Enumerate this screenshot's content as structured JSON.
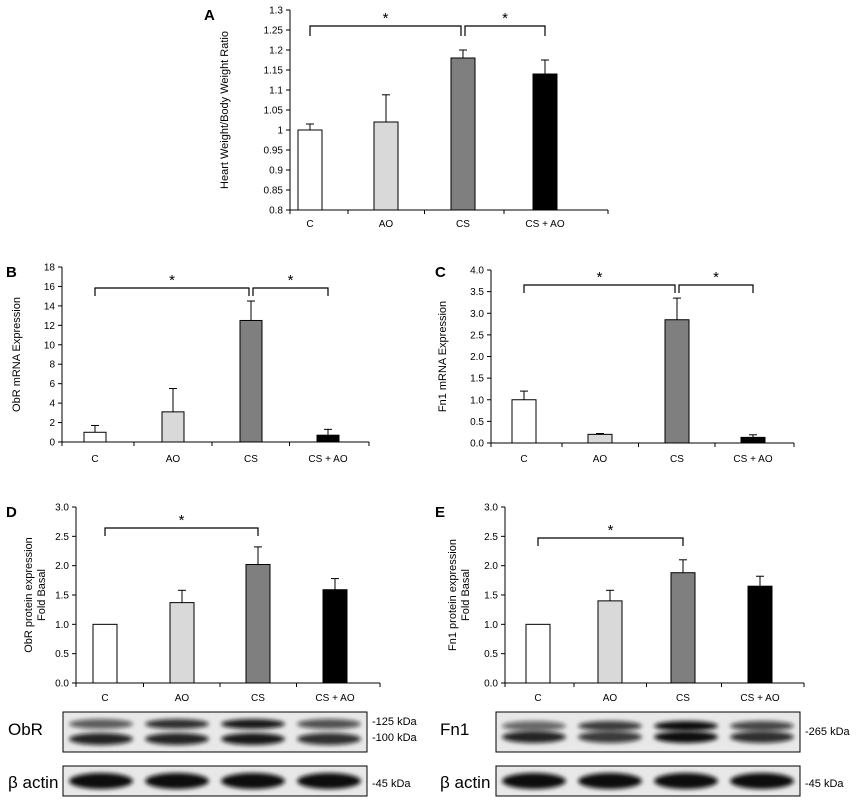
{
  "chart_data": [
    {
      "panel": "A",
      "type": "bar",
      "categories": [
        "C",
        "AO",
        "CS",
        "CS + AO"
      ],
      "values": [
        1.0,
        1.02,
        1.18,
        1.14
      ],
      "errors": [
        0.015,
        0.068,
        0.02,
        0.035
      ],
      "ylabel": "Heart Weight/Body Weight  Ratio",
      "ylim": [
        0.8,
        1.3
      ],
      "yticks": [
        "0.8",
        "0.85",
        "0.9",
        "0.95",
        "1",
        "1.05",
        "1.1",
        "1.15",
        "1.2",
        "1.25",
        "1.3"
      ],
      "significance": [
        {
          "from": 0,
          "to": 2,
          "label": "*"
        },
        {
          "from": 2,
          "to": 3,
          "label": "*"
        }
      ]
    },
    {
      "panel": "B",
      "type": "bar",
      "categories": [
        "C",
        "AO",
        "CS",
        "CS + AO"
      ],
      "values": [
        1.0,
        3.1,
        12.5,
        0.7
      ],
      "errors": [
        0.7,
        2.4,
        2.0,
        0.6
      ],
      "ylabel": "ObR mRNA Expression",
      "ylim": [
        0,
        18
      ],
      "yticks": [
        "0",
        "2",
        "4",
        "6",
        "8",
        "10",
        "12",
        "14",
        "16",
        "18"
      ],
      "significance": [
        {
          "from": 0,
          "to": 2,
          "label": "*"
        },
        {
          "from": 2,
          "to": 3,
          "label": "*"
        }
      ]
    },
    {
      "panel": "C",
      "type": "bar",
      "categories": [
        "C",
        "AO",
        "CS",
        "CS + AO"
      ],
      "values": [
        1.0,
        0.2,
        2.85,
        0.13
      ],
      "errors": [
        0.2,
        0.02,
        0.5,
        0.06
      ],
      "ylabel": "Fn1 mRNA Expression",
      "ylim": [
        0,
        4
      ],
      "yticks": [
        "0.0",
        "0.5",
        "1.0",
        "1.5",
        "2.0",
        "2.5",
        "3.0",
        "3.5",
        "4.0"
      ],
      "significance": [
        {
          "from": 0,
          "to": 2,
          "label": "*"
        },
        {
          "from": 2,
          "to": 3,
          "label": "*"
        }
      ]
    },
    {
      "panel": "D",
      "type": "bar",
      "categories": [
        "C",
        "AO",
        "CS",
        "CS + AO"
      ],
      "values": [
        1.0,
        1.37,
        2.02,
        1.59
      ],
      "errors": [
        0.0,
        0.21,
        0.3,
        0.19
      ],
      "ylabel": "ObR protein expression Fold Basal",
      "ylabel_lines": [
        "ObR protein expression",
        "Fold Basal"
      ],
      "ylim": [
        0,
        3
      ],
      "yticks": [
        "0.0",
        "0.5",
        "1.0",
        "1.5",
        "2.0",
        "2.5",
        "3.0"
      ],
      "significance": [
        {
          "from": 0,
          "to": 2,
          "label": "*"
        }
      ]
    },
    {
      "panel": "E",
      "type": "bar",
      "categories": [
        "C",
        "AO",
        "CS",
        "CS + AO"
      ],
      "values": [
        1.0,
        1.4,
        1.88,
        1.65
      ],
      "errors": [
        0.0,
        0.18,
        0.22,
        0.17
      ],
      "ylabel": "Fn1 protein expression Fold Basal",
      "ylabel_lines": [
        "Fn1 protein expression",
        "Fold Basal"
      ],
      "ylim": [
        0,
        3
      ],
      "yticks": [
        "0.0",
        "0.5",
        "1.0",
        "1.5",
        "2.0",
        "2.5",
        "3.0"
      ],
      "significance": [
        {
          "from": 0,
          "to": 2,
          "label": "*"
        }
      ]
    }
  ],
  "bar_colors": [
    "#ffffff",
    "#d9d9d9",
    "#7f7f7f",
    "#000000"
  ],
  "blots": [
    {
      "panel": "D",
      "label": "ObR",
      "markers": [
        "-125 kDa",
        "-100 kDa"
      ]
    },
    {
      "panel": "D",
      "label": "β actin",
      "markers": [
        "-45 kDa"
      ]
    },
    {
      "panel": "E",
      "label": "Fn1",
      "markers": [
        "-265 kDa"
      ]
    },
    {
      "panel": "E",
      "label": "β actin",
      "markers": [
        "-45 kDa"
      ]
    }
  ]
}
